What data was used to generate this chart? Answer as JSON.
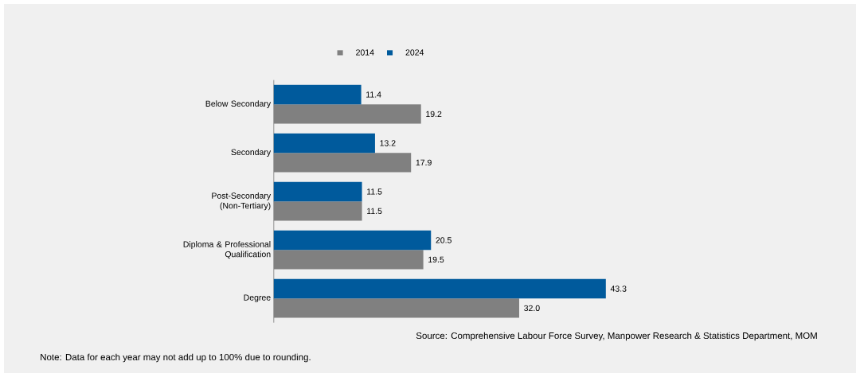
{
  "chart_data": {
    "type": "bar",
    "orientation": "horizontal",
    "categories": [
      "Below Secondary",
      "Secondary",
      "Post-Secondary (Non-Tertiary)",
      "Diploma & Professional Qualification",
      "Degree"
    ],
    "series": [
      {
        "name": "2014",
        "color": "#808080",
        "values": [
          19.2,
          17.9,
          11.5,
          19.5,
          32.0
        ],
        "value_labels": [
          "19.2",
          "17.9",
          "11.5",
          "19.5",
          "32.0"
        ]
      },
      {
        "name": "2024",
        "color": "#005a9c",
        "values": [
          11.4,
          13.2,
          11.5,
          20.5,
          43.3
        ],
        "value_labels": [
          "11.4",
          "13.2",
          "11.5",
          "20.5",
          "43.3"
        ]
      }
    ],
    "legend": "top",
    "annotations": [
      "Source: Comprehensive Labour Force Survey, Manpower Research & Statistics Department, MOM",
      "Note: Data for each year may not add up to 100% due to rounding."
    ]
  }
}
